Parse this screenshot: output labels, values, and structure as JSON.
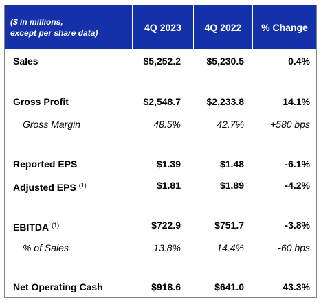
{
  "header": {
    "units_line1": "($ in millions,",
    "units_line2": "except per share data)",
    "col1": "4Q 2023",
    "col2": "4Q 2022",
    "col3": "% Change"
  },
  "rows": {
    "sales": {
      "label": "Sales",
      "v1": "$5,252.2",
      "v2": "$5,230.5",
      "v3": "0.4%"
    },
    "gross_profit": {
      "label": "Gross Profit",
      "v1": "$2,548.7",
      "v2": "$2,233.8",
      "v3": "14.1%"
    },
    "gross_margin": {
      "label": "Gross Margin",
      "v1": "48.5%",
      "v2": "42.7%",
      "v3": "+580 bps"
    },
    "reported_eps": {
      "label": "Reported EPS",
      "v1": "$1.39",
      "v2": "$1.48",
      "v3": "-6.1%"
    },
    "adjusted_eps": {
      "label": "Adjusted EPS",
      "footnote": "(1)",
      "v1": "$1.81",
      "v2": "$1.89",
      "v3": "-4.2%"
    },
    "ebitda": {
      "label": "EBITDA",
      "footnote": "(1)",
      "v1": "$722.9",
      "v2": "$751.7",
      "v3": "-3.8%"
    },
    "pct_of_sales": {
      "label": "% of Sales",
      "v1": "13.8%",
      "v2": "14.4%",
      "v3": "-60 bps"
    },
    "net_operating_cash": {
      "label": "Net Operating Cash",
      "v1": "$918.6",
      "v2": "$641.0",
      "v3": "43.3%"
    }
  },
  "colors": {
    "header_bg": "#1431a9",
    "header_text": "#ffffff",
    "border": "#7f8793"
  }
}
